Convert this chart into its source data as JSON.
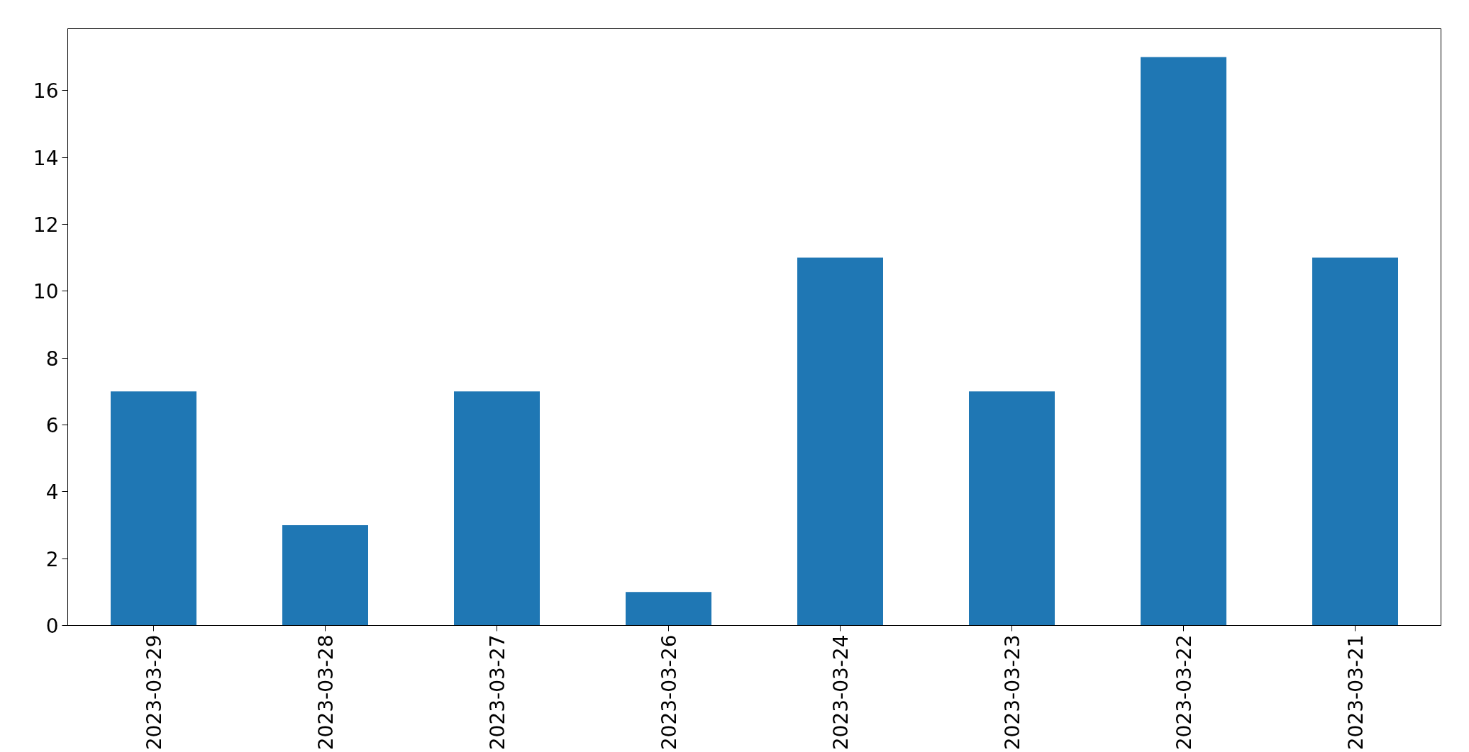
{
  "chart_data": {
    "type": "bar",
    "categories": [
      "2023-03-29",
      "2023-03-28",
      "2023-03-27",
      "2023-03-26",
      "2023-03-24",
      "2023-03-23",
      "2023-03-22",
      "2023-03-21"
    ],
    "values": [
      7,
      3,
      7,
      1,
      11,
      7,
      17,
      11
    ],
    "color": "#1f77b4",
    "ylim": [
      0,
      17.85
    ],
    "yticks": [
      0,
      2,
      4,
      6,
      8,
      10,
      12,
      14,
      16
    ],
    "grid": false
  }
}
